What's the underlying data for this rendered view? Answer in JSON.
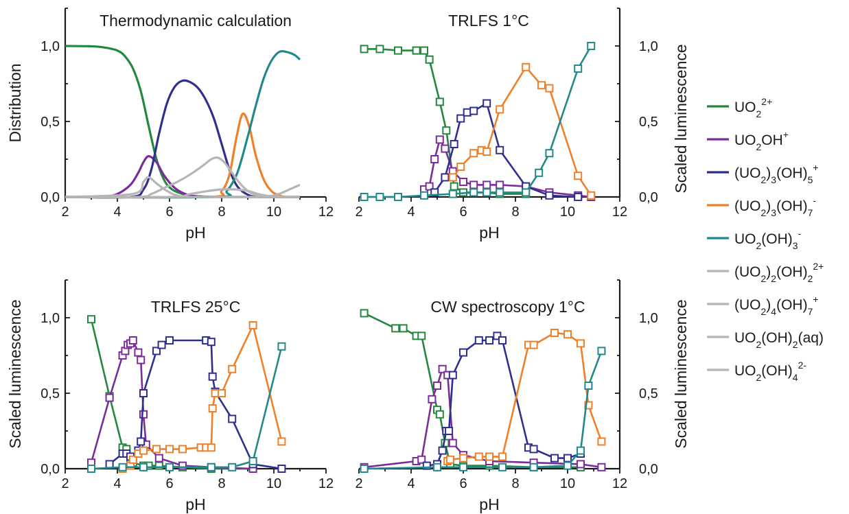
{
  "colors": {
    "UO2": "#22883f",
    "UO2OH": "#7a2c9a",
    "UO2_3OH5": "#2f2f8f",
    "UO2_3OH7": "#f07f28",
    "UO2OH3": "#22898a",
    "minor": "#b5b5b5"
  },
  "legend": [
    {
      "key": "UO2",
      "base": "UO",
      "sub1": "2",
      "sup1": "2+",
      "rest": "",
      "sub2": "",
      "sup2": "",
      "tail": ""
    },
    {
      "key": "UO2OH",
      "base": "UO",
      "sub1": "2",
      "sup1": "",
      "rest": "OH",
      "sub2": "",
      "sup2": "+",
      "tail": ""
    },
    {
      "key": "UO2_3OH5",
      "base": "(UO",
      "sub1": "2",
      "sup1": "",
      "rest": ")",
      "sub2": "3",
      "sup2": "",
      "tail": "(OH)",
      "sub3": "5",
      "sup3": "+"
    },
    {
      "key": "UO2_3OH7",
      "base": "(UO",
      "sub1": "2",
      "sup1": "",
      "rest": ")",
      "sub2": "3",
      "sup2": "",
      "tail": "(OH)",
      "sub3": "7",
      "sup3": "-"
    },
    {
      "key": "UO2OH3",
      "base": "UO",
      "sub1": "2",
      "sup1": "",
      "rest": "(OH)",
      "sub2": "3",
      "sup2": "-",
      "tail": ""
    },
    {
      "key": "minor",
      "base": "(UO",
      "sub1": "2",
      "sup1": "",
      "rest": ")",
      "sub2": "2",
      "sup2": "",
      "tail": "(OH)",
      "sub3": "2",
      "sup3": "2+"
    },
    {
      "key": "minor",
      "base": "(UO",
      "sub1": "2",
      "sup1": "",
      "rest": ")",
      "sub2": "4",
      "sup2": "",
      "tail": "(OH)",
      "sub3": "7",
      "sup3": "+"
    },
    {
      "key": "minor",
      "base": "UO",
      "sub1": "2",
      "sup1": "",
      "rest": "(OH)",
      "sub2": "2",
      "sup2": "",
      "tail": "(aq)"
    },
    {
      "key": "minor",
      "base": "UO",
      "sub1": "2",
      "sup1": "",
      "rest": "(OH)",
      "sub2": "4",
      "sup2": "2-",
      "tail": ""
    }
  ],
  "chart_data": [
    {
      "type": "line",
      "title": "Thermodynamic calculation",
      "xlabel": "pH",
      "ylabel": "Distribution",
      "xlim": [
        2,
        12
      ],
      "ylim": [
        0,
        1.25
      ],
      "xticks": [
        "2",
        "4",
        "6",
        "8",
        "10",
        "12"
      ],
      "yticks": [
        "0,0",
        "0,5",
        "1,0"
      ],
      "ytick_values": [
        0,
        0.5,
        1.0
      ],
      "series": [
        {
          "key": "UO2",
          "x": [
            2,
            3,
            3.5,
            4,
            4.3,
            4.6,
            4.9,
            5.2,
            5.5,
            5.8,
            6.1,
            6.5,
            7,
            8,
            11
          ],
          "y": [
            1.0,
            0.998,
            0.99,
            0.97,
            0.93,
            0.85,
            0.7,
            0.47,
            0.25,
            0.11,
            0.05,
            0.02,
            0.005,
            0.0,
            0.0
          ]
        },
        {
          "key": "UO2OH",
          "x": [
            2,
            3.5,
            4,
            4.5,
            4.8,
            5.0,
            5.2,
            5.5,
            5.8,
            6.2,
            6.6,
            7,
            8,
            11
          ],
          "y": [
            0.0,
            0.005,
            0.02,
            0.08,
            0.16,
            0.23,
            0.27,
            0.23,
            0.14,
            0.06,
            0.02,
            0.005,
            0.0,
            0.0
          ]
        },
        {
          "key": "UO2_3OH5",
          "x": [
            2,
            4.5,
            5,
            5.3,
            5.6,
            5.9,
            6.2,
            6.5,
            6.8,
            7.1,
            7.4,
            7.7,
            8.0,
            8.3,
            8.6,
            9.0,
            9.5,
            11
          ],
          "y": [
            0.0,
            0.0,
            0.05,
            0.18,
            0.42,
            0.62,
            0.73,
            0.77,
            0.76,
            0.72,
            0.64,
            0.52,
            0.35,
            0.18,
            0.07,
            0.015,
            0.0,
            0.0
          ]
        },
        {
          "key": "UO2_3OH7",
          "x": [
            2,
            7.5,
            8.0,
            8.3,
            8.55,
            8.8,
            9.05,
            9.3,
            9.6,
            9.9,
            10.2,
            10.5,
            11
          ],
          "y": [
            0.0,
            0.0,
            0.04,
            0.15,
            0.38,
            0.55,
            0.47,
            0.28,
            0.12,
            0.04,
            0.01,
            0.0,
            0.0
          ]
        },
        {
          "key": "UO2OH3",
          "x": [
            2,
            7.8,
            8.2,
            8.6,
            9.0,
            9.3,
            9.6,
            9.9,
            10.2,
            10.5,
            10.8,
            11
          ],
          "y": [
            0.0,
            0.0,
            0.04,
            0.16,
            0.4,
            0.6,
            0.78,
            0.9,
            0.96,
            0.96,
            0.94,
            0.91
          ]
        },
        {
          "key": "minor",
          "x": [
            2,
            4.6,
            5.0,
            5.2,
            5.5,
            5.9,
            6.3,
            7,
            11
          ],
          "y": [
            0.0,
            0.02,
            0.1,
            0.13,
            0.09,
            0.04,
            0.01,
            0.0,
            0.0
          ]
        },
        {
          "key": "minor",
          "x": [
            2,
            4.8,
            5.3,
            5.8,
            6.3,
            6.8,
            7.3,
            7.6,
            7.85,
            8.1,
            8.4,
            8.7,
            9.0,
            9.3,
            9.6,
            11
          ],
          "y": [
            0.0,
            0.0,
            0.02,
            0.06,
            0.1,
            0.15,
            0.21,
            0.25,
            0.26,
            0.23,
            0.16,
            0.09,
            0.04,
            0.015,
            0.0,
            0.0
          ]
        },
        {
          "key": "minor",
          "x": [
            2,
            6.0,
            6.8,
            7.5,
            8.0,
            8.5,
            9.0,
            9.5,
            10.0,
            11
          ],
          "y": [
            0.0,
            0.0,
            0.02,
            0.04,
            0.05,
            0.05,
            0.04,
            0.015,
            0.003,
            0.0
          ]
        },
        {
          "key": "minor",
          "x": [
            2,
            9.0,
            9.8,
            10.2,
            10.6,
            11
          ],
          "y": [
            0.0,
            0.0,
            0.005,
            0.02,
            0.05,
            0.08
          ]
        }
      ]
    },
    {
      "type": "line",
      "title": "TRLFS 1°C",
      "xlabel": "pH",
      "ylabel": "Scaled luminescence",
      "xlim": [
        2,
        12
      ],
      "ylim": [
        0,
        1.25
      ],
      "xticks": [
        "2",
        "4",
        "6",
        "8",
        "10",
        "12"
      ],
      "yticks": [
        "0,0",
        "0,5",
        "1,0"
      ],
      "ytick_values": [
        0,
        0.5,
        1.0
      ],
      "markers": true,
      "series": [
        {
          "key": "UO2",
          "x": [
            2.2,
            2.8,
            3.5,
            4.2,
            4.5,
            4.7,
            5.1,
            5.35,
            5.65,
            6.0,
            6.4,
            6.9,
            7.4,
            8.4
          ],
          "y": [
            0.98,
            0.98,
            0.97,
            0.97,
            0.97,
            0.91,
            0.63,
            0.44,
            0.07,
            0.03,
            0.03,
            0.03,
            0.02,
            0.02
          ]
        },
        {
          "key": "UO2OH",
          "x": [
            4.5,
            4.7,
            4.9,
            5.1,
            5.3,
            5.6,
            6.0,
            6.4,
            6.9,
            7.4,
            8.4,
            9.3,
            10.4,
            10.9
          ],
          "y": [
            0.05,
            0.07,
            0.25,
            0.38,
            0.32,
            0.17,
            0.1,
            0.08,
            0.08,
            0.08,
            0.07,
            0.03,
            0.01,
            0.0
          ]
        },
        {
          "key": "UO2_3OH5",
          "x": [
            4.9,
            5.3,
            5.65,
            5.9,
            6.15,
            6.4,
            6.9,
            7.4,
            8.4,
            9.3,
            10.4
          ],
          "y": [
            0.03,
            0.13,
            0.35,
            0.52,
            0.56,
            0.57,
            0.62,
            0.31,
            0.07,
            0.01,
            0.0
          ]
        },
        {
          "key": "UO2_3OH7",
          "x": [
            5.6,
            5.9,
            6.4,
            6.7,
            6.9,
            7.4,
            8.4,
            9.0,
            9.3,
            10.4,
            10.9
          ],
          "y": [
            0.13,
            0.2,
            0.29,
            0.31,
            0.3,
            0.58,
            0.86,
            0.74,
            0.72,
            0.14,
            0.01
          ]
        },
        {
          "key": "UO2OH3",
          "x": [
            2.2,
            2.8,
            3.5,
            4.5,
            5.6,
            6.4,
            6.9,
            7.4,
            8.4,
            8.9,
            9.3,
            10.4,
            10.9
          ],
          "y": [
            0.0,
            0.0,
            0.0,
            0.01,
            0.02,
            0.03,
            0.03,
            0.03,
            0.03,
            0.16,
            0.29,
            0.85,
            1.0
          ]
        }
      ]
    },
    {
      "type": "line",
      "title": "TRLFS 25°C",
      "xlabel": "pH",
      "ylabel": "Scaled luminescence",
      "xlim": [
        2,
        12
      ],
      "ylim": [
        0,
        1.25
      ],
      "xticks": [
        "2",
        "4",
        "6",
        "8",
        "10",
        "12"
      ],
      "yticks": [
        "0,0",
        "0,5",
        "1,0"
      ],
      "ytick_values": [
        0,
        0.5,
        1.0
      ],
      "markers": true,
      "series": [
        {
          "key": "UO2",
          "x": [
            3.0,
            3.7,
            4.2,
            4.35,
            4.5,
            4.6,
            5.0,
            5.2,
            5.6,
            6.5,
            7.6,
            9.2
          ],
          "y": [
            0.99,
            0.48,
            0.14,
            0.13,
            0.05,
            0.04,
            0.02,
            0.02,
            0.02,
            0.01,
            0.0,
            0.0
          ]
        },
        {
          "key": "UO2OH",
          "x": [
            3.0,
            3.7,
            4.2,
            4.3,
            4.4,
            4.5,
            4.6,
            4.8,
            4.9,
            5.0,
            5.1,
            5.6,
            6.5,
            7.6,
            9.2
          ],
          "y": [
            0.04,
            0.47,
            0.75,
            0.78,
            0.82,
            0.83,
            0.85,
            0.77,
            0.72,
            0.36,
            0.16,
            0.07,
            0.02,
            0.01,
            0.0
          ]
        },
        {
          "key": "UO2_3OH5",
          "x": [
            3.7,
            4.2,
            4.35,
            4.5,
            4.8,
            4.9,
            5.0,
            5.5,
            5.7,
            6.0,
            7.4,
            7.6,
            7.65,
            7.75,
            8.4,
            9.2,
            10.3
          ],
          "y": [
            0.03,
            0.1,
            0.1,
            0.08,
            0.12,
            0.18,
            0.5,
            0.78,
            0.82,
            0.85,
            0.85,
            0.84,
            0.61,
            0.51,
            0.33,
            0.03,
            0.0
          ]
        },
        {
          "key": "UO2_3OH7",
          "x": [
            4.2,
            4.5,
            4.6,
            4.8,
            5.0,
            5.5,
            6.0,
            6.5,
            7.2,
            7.4,
            7.6,
            7.65,
            7.75,
            8.0,
            8.4,
            9.2,
            10.3
          ],
          "y": [
            0.0,
            0.02,
            0.06,
            0.1,
            0.12,
            0.13,
            0.13,
            0.13,
            0.14,
            0.14,
            0.14,
            0.4,
            0.5,
            0.5,
            0.66,
            0.95,
            0.18
          ]
        },
        {
          "key": "UO2OH3",
          "x": [
            3.0,
            4.2,
            5.0,
            6.0,
            7.6,
            8.4,
            9.2,
            10.3
          ],
          "y": [
            0.0,
            0.01,
            0.01,
            0.01,
            0.01,
            0.01,
            0.05,
            0.81
          ]
        }
      ]
    },
    {
      "type": "line",
      "title": "CW spectroscopy 1°C",
      "xlabel": "pH",
      "ylabel": "Scaled luminescence",
      "xlim": [
        2,
        12
      ],
      "ylim": [
        0,
        1.25
      ],
      "xticks": [
        "2",
        "4",
        "6",
        "8",
        "10",
        "12"
      ],
      "yticks": [
        "0,0",
        "0,5",
        "1,0"
      ],
      "ytick_values": [
        0,
        0.5,
        1.0
      ],
      "markers": true,
      "series": [
        {
          "key": "UO2",
          "x": [
            2.2,
            3.4,
            3.7,
            4.2,
            4.4,
            5.0,
            5.1,
            5.3,
            5.5,
            6.0,
            7.0,
            8.7,
            10.5
          ],
          "y": [
            1.03,
            0.93,
            0.93,
            0.88,
            0.88,
            0.39,
            0.36,
            0.17,
            0.03,
            0.02,
            0.02,
            0.01,
            0.01
          ]
        },
        {
          "key": "UO2OH",
          "x": [
            2.2,
            4.2,
            4.4,
            4.8,
            5.0,
            5.2,
            5.4,
            5.6,
            6.0,
            7.0,
            8.7,
            10.5,
            11.3
          ],
          "y": [
            0.01,
            0.05,
            0.06,
            0.46,
            0.55,
            0.66,
            0.62,
            0.17,
            0.09,
            0.05,
            0.04,
            0.03,
            0.01
          ]
        },
        {
          "key": "UO2_3OH5",
          "x": [
            4.6,
            5.0,
            5.2,
            5.35,
            5.45,
            5.6,
            6.0,
            6.6,
            7.0,
            7.3,
            7.5,
            8.5,
            8.7,
            9.5,
            10.0,
            10.5
          ],
          "y": [
            0.02,
            0.03,
            0.12,
            0.25,
            0.25,
            0.62,
            0.77,
            0.85,
            0.85,
            0.88,
            0.85,
            0.14,
            0.13,
            0.07,
            0.07,
            0.1
          ]
        },
        {
          "key": "UO2_3OH7",
          "x": [
            5.4,
            5.5,
            6.0,
            6.6,
            7.0,
            7.5,
            8.5,
            8.7,
            9.5,
            10.0,
            10.5,
            10.8,
            11.3
          ],
          "y": [
            0.05,
            0.06,
            0.07,
            0.08,
            0.08,
            0.08,
            0.82,
            0.82,
            0.9,
            0.89,
            0.83,
            0.42,
            0.18
          ]
        },
        {
          "key": "UO2OH3",
          "x": [
            2.2,
            5.0,
            6.0,
            7.5,
            8.7,
            10.0,
            10.5,
            10.8,
            11.3
          ],
          "y": [
            0.0,
            0.01,
            0.01,
            0.01,
            0.01,
            0.02,
            0.12,
            0.55,
            0.78
          ]
        }
      ]
    }
  ]
}
